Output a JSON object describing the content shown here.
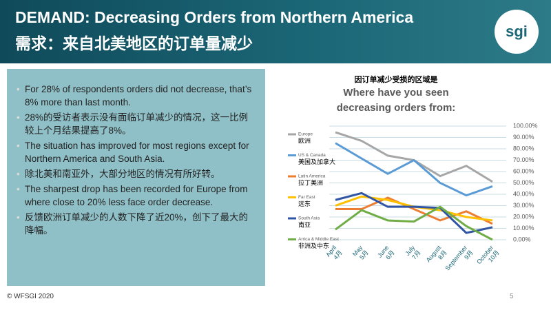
{
  "header": {
    "title": "DEMAND: Decreasing Orders from Northern America",
    "subtitle": "需求：来自北美地区的订单量减少",
    "logo": "sgi"
  },
  "bullets": [
    "For 28% of respondents orders did not decrease, that’s 8% more than last month.",
    "28%的受访者表示没有面临订单减少的情况，这一比例较上个月结果提高了8%。",
    "The situation has improved for most regions except for Northern America and South Asia.",
    "除北美和南亚外，大部分地区的情况有所好转。",
    "The sharpest drop has been recorded for Europe from where close to 20% less face order decrease.",
    "反馈欧洲订单减少的人数下降了近20%，创下了最大的降幅。"
  ],
  "footer": {
    "copyright": "© WFSGI 2020",
    "page": "5"
  },
  "chart_data": {
    "type": "line",
    "title_cn": "因订单减少受损的区域是",
    "title": "Where have you seen decreasing orders from:",
    "categories": [
      "April",
      "May",
      "June",
      "July",
      "August",
      "September",
      "October"
    ],
    "categories_cn": [
      "4月",
      "5月",
      "6月",
      "7月",
      "8月",
      "9月",
      "10月"
    ],
    "series": [
      {
        "name": "Europe",
        "name_cn": "欧洲",
        "color": "#a6a6a6",
        "values": [
          94.5,
          87,
          74,
          70,
          56,
          65,
          51
        ]
      },
      {
        "name": "US & Canada",
        "name_cn": "美国及加拿大",
        "color": "#5b9bd5",
        "values": [
          85,
          71.5,
          58,
          70,
          50,
          39,
          47
        ]
      },
      {
        "name": "Latin America",
        "name_cn": "拉丁美洲",
        "color": "#ed7d31",
        "values": [
          27,
          27,
          37,
          27,
          17,
          25,
          14
        ]
      },
      {
        "name": "Far East",
        "name_cn": "远东",
        "color": "#ffc000",
        "values": [
          30,
          38,
          35,
          29,
          26,
          20,
          17
        ]
      },
      {
        "name": "South Asia",
        "name_cn": "南亚",
        "color": "#2f55a4",
        "values": [
          35,
          41,
          29,
          29,
          28,
          6,
          11
        ]
      },
      {
        "name": "Arrica & Middle East",
        "name_cn": "非洲及中东",
        "color": "#70ad47",
        "values": [
          9,
          26,
          17,
          16,
          29,
          12,
          0
        ]
      }
    ],
    "ylim": [
      0,
      100
    ],
    "yticks": [
      {
        "value": 0,
        "label": "0.00%"
      },
      {
        "value": 10,
        "label": "10.00%"
      },
      {
        "value": 20,
        "label": "20.00%"
      },
      {
        "value": 30,
        "label": "30.00%"
      },
      {
        "value": 40,
        "label": "40.00%"
      },
      {
        "value": 50,
        "label": "50.00%"
      },
      {
        "value": 60,
        "label": "60.00%"
      },
      {
        "value": 70,
        "label": "70.00%"
      },
      {
        "value": 80,
        "label": "80.00%"
      },
      {
        "value": 90,
        "label": "90.00%"
      },
      {
        "value": 100,
        "label": "100.00%"
      }
    ],
    "grid": true
  }
}
